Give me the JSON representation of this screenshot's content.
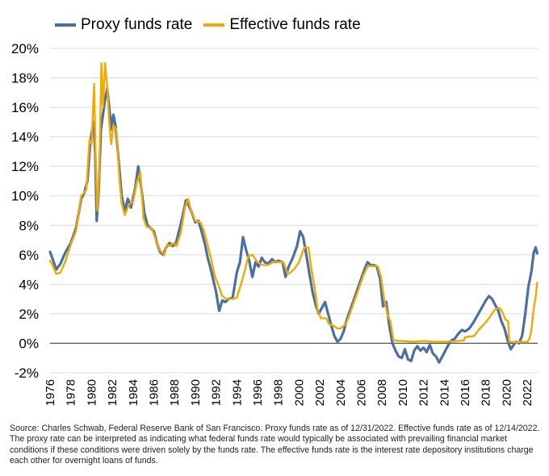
{
  "legend": {
    "proxy_label": "Proxy funds rate",
    "effective_label": "Effective funds rate"
  },
  "colors": {
    "proxy": "#4a6fa5",
    "effective": "#f2a900",
    "zero_line": "#444444",
    "grid": "#d9d9d9"
  },
  "source_note": "Source: Charles Schwab, Federal Reserve Bank of San Francisco. Proxy funds rate as of 12/31/2022. Effective funds rate as of 12/14/2022. The proxy rate can be interpreted as indicating what federal funds rate would typically be associated with prevailing financial market conditions if these conditions were driven solely by the funds rate. The effective funds rate is the interest rate depository institutions charge each other for overnight loans of funds.",
  "chart_data": {
    "type": "line",
    "ylim": [
      -2,
      20
    ],
    "xlim": [
      1976,
      2023
    ],
    "y_ticks": [
      -2,
      0,
      2,
      4,
      6,
      8,
      10,
      12,
      14,
      16,
      18,
      20
    ],
    "y_tick_labels": [
      "-2%",
      "0%",
      "2%",
      "4%",
      "6%",
      "8%",
      "10%",
      "12%",
      "14%",
      "16%",
      "18%",
      "20%"
    ],
    "x_ticks": [
      1976,
      1978,
      1980,
      1982,
      1984,
      1986,
      1988,
      1990,
      1992,
      1994,
      1996,
      1998,
      2000,
      2002,
      2004,
      2006,
      2008,
      2010,
      2012,
      2014,
      2016,
      2018,
      2020,
      2022
    ],
    "x_tick_labels": [
      "1976",
      "1978",
      "1980",
      "1982",
      "1984",
      "1986",
      "1988",
      "1990",
      "1992",
      "1994",
      "1996",
      "1998",
      "2000",
      "2002",
      "2004",
      "2006",
      "2008",
      "2010",
      "2012",
      "2014",
      "2016",
      "2018",
      "2020",
      "2022"
    ],
    "legend_position": "top-left",
    "grid": "horizontal",
    "series": [
      {
        "name": "Proxy funds rate",
        "points": [
          [
            1976.0,
            6.2
          ],
          [
            1976.3,
            5.6
          ],
          [
            1976.6,
            5.0
          ],
          [
            1977.0,
            5.4
          ],
          [
            1977.5,
            6.2
          ],
          [
            1978.0,
            6.8
          ],
          [
            1978.5,
            7.8
          ],
          [
            1979.0,
            9.8
          ],
          [
            1979.3,
            10.2
          ],
          [
            1979.6,
            11.0
          ],
          [
            1979.9,
            13.8
          ],
          [
            1980.2,
            15.0
          ],
          [
            1980.35,
            13.0
          ],
          [
            1980.5,
            8.3
          ],
          [
            1980.7,
            10.5
          ],
          [
            1980.9,
            14.5
          ],
          [
            1981.1,
            15.5
          ],
          [
            1981.3,
            16.5
          ],
          [
            1981.5,
            17.3
          ],
          [
            1981.7,
            16.0
          ],
          [
            1981.9,
            14.5
          ],
          [
            1982.1,
            15.5
          ],
          [
            1982.3,
            14.8
          ],
          [
            1982.6,
            12.5
          ],
          [
            1982.9,
            10.0
          ],
          [
            1983.2,
            9.0
          ],
          [
            1983.5,
            9.8
          ],
          [
            1983.8,
            9.2
          ],
          [
            1984.2,
            10.5
          ],
          [
            1984.5,
            12.0
          ],
          [
            1984.8,
            10.5
          ],
          [
            1985.1,
            8.8
          ],
          [
            1985.4,
            8.0
          ],
          [
            1985.7,
            7.8
          ],
          [
            1986.0,
            7.6
          ],
          [
            1986.3,
            6.8
          ],
          [
            1986.6,
            6.2
          ],
          [
            1986.9,
            6.0
          ],
          [
            1987.2,
            6.5
          ],
          [
            1987.5,
            6.8
          ],
          [
            1987.8,
            6.6
          ],
          [
            1988.1,
            6.7
          ],
          [
            1988.5,
            7.8
          ],
          [
            1988.8,
            8.7
          ],
          [
            1989.1,
            9.7
          ],
          [
            1989.4,
            9.3
          ],
          [
            1989.7,
            8.8
          ],
          [
            1990.0,
            8.2
          ],
          [
            1990.3,
            8.3
          ],
          [
            1990.6,
            7.6
          ],
          [
            1990.9,
            6.8
          ],
          [
            1991.2,
            5.8
          ],
          [
            1991.5,
            5.0
          ],
          [
            1991.8,
            4.1
          ],
          [
            1992.0,
            3.5
          ],
          [
            1992.3,
            2.2
          ],
          [
            1992.6,
            2.9
          ],
          [
            1992.9,
            2.8
          ],
          [
            1993.2,
            3.0
          ],
          [
            1993.6,
            3.1
          ],
          [
            1994.0,
            4.8
          ],
          [
            1994.3,
            5.5
          ],
          [
            1994.6,
            7.2
          ],
          [
            1994.9,
            6.3
          ],
          [
            1995.2,
            5.6
          ],
          [
            1995.5,
            4.5
          ],
          [
            1995.8,
            5.5
          ],
          [
            1996.1,
            5.2
          ],
          [
            1996.4,
            5.8
          ],
          [
            1996.7,
            5.5
          ],
          [
            1997.0,
            5.4
          ],
          [
            1997.4,
            5.7
          ],
          [
            1997.7,
            5.5
          ],
          [
            1998.0,
            5.6
          ],
          [
            1998.4,
            5.5
          ],
          [
            1998.7,
            4.5
          ],
          [
            1999.0,
            5.2
          ],
          [
            1999.4,
            5.8
          ],
          [
            1999.8,
            6.6
          ],
          [
            2000.1,
            7.6
          ],
          [
            2000.4,
            7.2
          ],
          [
            2000.7,
            6.0
          ],
          [
            2001.0,
            4.7
          ],
          [
            2001.3,
            3.5
          ],
          [
            2001.6,
            2.6
          ],
          [
            2001.9,
            2.0
          ],
          [
            2002.2,
            2.4
          ],
          [
            2002.5,
            2.8
          ],
          [
            2002.8,
            2.0
          ],
          [
            2003.1,
            1.2
          ],
          [
            2003.4,
            0.5
          ],
          [
            2003.7,
            0.1
          ],
          [
            2004.0,
            0.3
          ],
          [
            2004.3,
            0.8
          ],
          [
            2004.6,
            1.6
          ],
          [
            2004.9,
            2.2
          ],
          [
            2005.2,
            2.8
          ],
          [
            2005.6,
            3.6
          ],
          [
            2006.0,
            4.4
          ],
          [
            2006.3,
            5.0
          ],
          [
            2006.6,
            5.5
          ],
          [
            2006.9,
            5.3
          ],
          [
            2007.2,
            5.3
          ],
          [
            2007.5,
            5.2
          ],
          [
            2007.8,
            4.4
          ],
          [
            2008.1,
            2.5
          ],
          [
            2008.4,
            2.8
          ],
          [
            2008.7,
            1.2
          ],
          [
            2009.0,
            0.0
          ],
          [
            2009.3,
            -0.5
          ],
          [
            2009.6,
            -0.9
          ],
          [
            2009.9,
            -1.0
          ],
          [
            2010.2,
            -0.4
          ],
          [
            2010.5,
            -1.1
          ],
          [
            2010.8,
            -1.2
          ],
          [
            2011.1,
            -0.5
          ],
          [
            2011.4,
            -0.2
          ],
          [
            2011.7,
            -0.5
          ],
          [
            2012.0,
            -0.3
          ],
          [
            2012.3,
            -0.6
          ],
          [
            2012.6,
            -0.1
          ],
          [
            2012.9,
            -0.7
          ],
          [
            2013.2,
            -0.9
          ],
          [
            2013.5,
            -1.3
          ],
          [
            2013.8,
            -0.9
          ],
          [
            2014.1,
            -0.5
          ],
          [
            2014.4,
            -0.1
          ],
          [
            2014.7,
            0.2
          ],
          [
            2015.0,
            0.3
          ],
          [
            2015.3,
            0.6
          ],
          [
            2015.7,
            0.9
          ],
          [
            2016.0,
            0.8
          ],
          [
            2016.4,
            1.0
          ],
          [
            2016.8,
            1.4
          ],
          [
            2017.2,
            1.9
          ],
          [
            2017.6,
            2.4
          ],
          [
            2018.0,
            2.9
          ],
          [
            2018.3,
            3.2
          ],
          [
            2018.6,
            3.0
          ],
          [
            2018.9,
            2.6
          ],
          [
            2019.2,
            2.2
          ],
          [
            2019.5,
            1.5
          ],
          [
            2019.8,
            1.0
          ],
          [
            2020.1,
            0.2
          ],
          [
            2020.4,
            -0.4
          ],
          [
            2020.6,
            -0.2
          ],
          [
            2020.9,
            0.1
          ],
          [
            2021.2,
            0.0
          ],
          [
            2021.5,
            0.5
          ],
          [
            2021.8,
            2.0
          ],
          [
            2022.1,
            3.8
          ],
          [
            2022.4,
            4.9
          ],
          [
            2022.6,
            6.1
          ],
          [
            2022.8,
            6.5
          ],
          [
            2022.95,
            6.1
          ]
        ]
      },
      {
        "name": "Effective funds rate",
        "points": [
          [
            1976.0,
            5.6
          ],
          [
            1976.3,
            5.2
          ],
          [
            1976.6,
            4.7
          ],
          [
            1977.0,
            4.8
          ],
          [
            1977.5,
            5.6
          ],
          [
            1978.0,
            6.7
          ],
          [
            1978.5,
            7.6
          ],
          [
            1979.0,
            10.0
          ],
          [
            1979.5,
            10.4
          ],
          [
            1979.8,
            13.8
          ],
          [
            1980.0,
            13.5
          ],
          [
            1980.25,
            17.6
          ],
          [
            1980.4,
            12.5
          ],
          [
            1980.55,
            9.0
          ],
          [
            1980.75,
            11.5
          ],
          [
            1980.95,
            19.0
          ],
          [
            1981.1,
            16.0
          ],
          [
            1981.3,
            19.0
          ],
          [
            1981.5,
            17.5
          ],
          [
            1981.7,
            15.0
          ],
          [
            1981.9,
            13.5
          ],
          [
            1982.1,
            14.8
          ],
          [
            1982.4,
            14.5
          ],
          [
            1982.7,
            11.0
          ],
          [
            1982.9,
            9.5
          ],
          [
            1983.2,
            8.7
          ],
          [
            1983.6,
            9.4
          ],
          [
            1984.0,
            9.6
          ],
          [
            1984.4,
            11.0
          ],
          [
            1984.7,
            11.6
          ],
          [
            1985.0,
            8.5
          ],
          [
            1985.3,
            7.9
          ],
          [
            1985.8,
            7.8
          ],
          [
            1986.2,
            7.0
          ],
          [
            1986.6,
            6.3
          ],
          [
            1987.0,
            6.0
          ],
          [
            1987.3,
            6.7
          ],
          [
            1987.6,
            6.6
          ],
          [
            1987.9,
            6.8
          ],
          [
            1988.2,
            6.6
          ],
          [
            1988.6,
            7.5
          ],
          [
            1989.0,
            9.2
          ],
          [
            1989.3,
            9.8
          ],
          [
            1989.6,
            9.0
          ],
          [
            1990.0,
            8.3
          ],
          [
            1990.5,
            8.2
          ],
          [
            1990.8,
            7.7
          ],
          [
            1991.1,
            6.9
          ],
          [
            1991.5,
            5.8
          ],
          [
            1991.9,
            4.5
          ],
          [
            1992.2,
            4.0
          ],
          [
            1992.6,
            3.2
          ],
          [
            1993.0,
            3.0
          ],
          [
            1993.6,
            3.0
          ],
          [
            1994.0,
            3.1
          ],
          [
            1994.4,
            4.0
          ],
          [
            1994.8,
            5.0
          ],
          [
            1995.1,
            5.9
          ],
          [
            1995.5,
            6.0
          ],
          [
            1996.0,
            5.5
          ],
          [
            1996.5,
            5.3
          ],
          [
            1997.0,
            5.3
          ],
          [
            1997.5,
            5.5
          ],
          [
            1998.0,
            5.5
          ],
          [
            1998.5,
            5.5
          ],
          [
            1998.9,
            4.7
          ],
          [
            1999.2,
            4.8
          ],
          [
            1999.6,
            5.1
          ],
          [
            2000.0,
            5.5
          ],
          [
            2000.5,
            6.5
          ],
          [
            2000.9,
            6.5
          ],
          [
            2001.2,
            5.0
          ],
          [
            2001.5,
            3.8
          ],
          [
            2001.8,
            2.2
          ],
          [
            2002.1,
            1.7
          ],
          [
            2002.6,
            1.7
          ],
          [
            2002.9,
            1.3
          ],
          [
            2003.3,
            1.2
          ],
          [
            2003.7,
            1.0
          ],
          [
            2004.0,
            1.0
          ],
          [
            2004.5,
            1.3
          ],
          [
            2004.9,
            2.0
          ],
          [
            2005.3,
            2.8
          ],
          [
            2005.8,
            3.8
          ],
          [
            2006.2,
            4.6
          ],
          [
            2006.6,
            5.2
          ],
          [
            2007.0,
            5.25
          ],
          [
            2007.6,
            5.2
          ],
          [
            2007.9,
            4.5
          ],
          [
            2008.2,
            3.0
          ],
          [
            2008.5,
            2.0
          ],
          [
            2008.8,
            1.5
          ],
          [
            2009.1,
            0.2
          ],
          [
            2009.6,
            0.15
          ],
          [
            2010.0,
            0.15
          ],
          [
            2011.0,
            0.1
          ],
          [
            2012.0,
            0.15
          ],
          [
            2013.0,
            0.1
          ],
          [
            2014.0,
            0.1
          ],
          [
            2015.0,
            0.13
          ],
          [
            2015.9,
            0.2
          ],
          [
            2016.0,
            0.4
          ],
          [
            2016.9,
            0.5
          ],
          [
            2017.3,
            0.9
          ],
          [
            2017.7,
            1.2
          ],
          [
            2018.1,
            1.5
          ],
          [
            2018.5,
            1.9
          ],
          [
            2018.9,
            2.3
          ],
          [
            2019.3,
            2.4
          ],
          [
            2019.6,
            2.1
          ],
          [
            2019.9,
            1.6
          ],
          [
            2020.15,
            1.5
          ],
          [
            2020.25,
            0.1
          ],
          [
            2020.8,
            0.08
          ],
          [
            2021.5,
            0.08
          ],
          [
            2022.0,
            0.08
          ],
          [
            2022.2,
            0.3
          ],
          [
            2022.4,
            0.9
          ],
          [
            2022.6,
            2.3
          ],
          [
            2022.8,
            3.1
          ],
          [
            2022.95,
            4.1
          ]
        ]
      }
    ]
  }
}
